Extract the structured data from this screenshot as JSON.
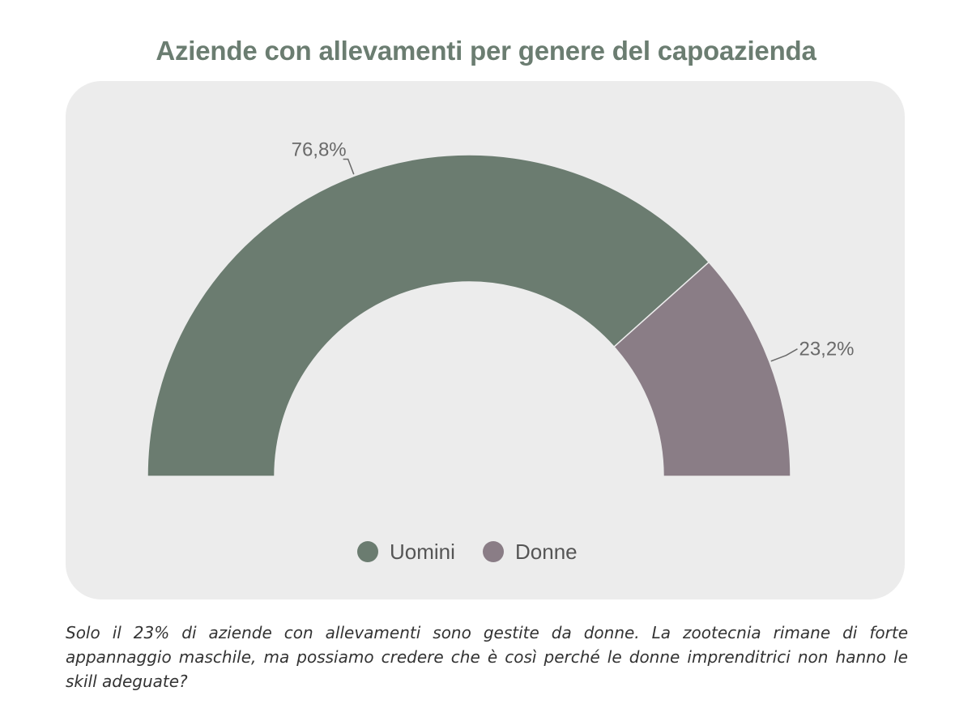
{
  "chart_data": {
    "type": "pie",
    "subtype": "half-donut",
    "title": "Aziende con allevamenti per genere del capoazienda",
    "categories": [
      "Uomini",
      "Donne"
    ],
    "values": [
      76.8,
      23.2
    ],
    "value_labels": [
      "76,8%",
      "23,2%"
    ],
    "unit": "%",
    "colors": [
      "#6b7c70",
      "#8a7d86"
    ],
    "legend": {
      "position": "bottom-center",
      "items": [
        "Uomini",
        "Donne"
      ]
    }
  },
  "caption": "Solo il 23% di aziende con allevamenti sono gestite da donne. La zootecnia rimane di forte appannaggio maschile, ma possiamo credere che è così perché le donne imprenditrici non hanno le skill adeguate?"
}
